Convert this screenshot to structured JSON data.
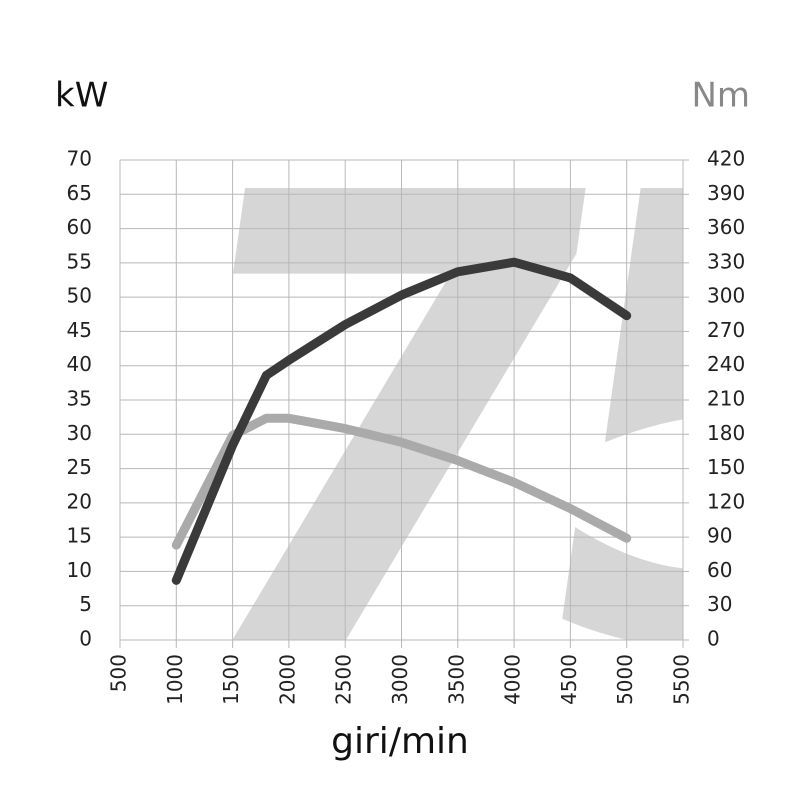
{
  "chart_data": {
    "type": "line",
    "watermark": "75",
    "y_label": "kW",
    "y2_label": "Nm",
    "x_label": "giri/min",
    "x": [
      1000,
      1500,
      1800,
      2000,
      2500,
      3000,
      3500,
      4000,
      4500,
      5000
    ],
    "series": [
      {
        "color": "#3a3a3a",
        "axis": "y2",
        "values": [
          83,
          179,
          194,
          194,
          185,
          173,
          157,
          138,
          115,
          89
        ]
      },
      {
        "color": "#3a3a3a",
        "axis": "y",
        "values": [
          8.7,
          28.4,
          38.6,
          40.8,
          46,
          50.3,
          53.7,
          55.1,
          52.8,
          47.3
        ]
      }
    ],
    "colors": [
      "#aaaaaa",
      "#3a3a3a"
    ],
    "xlim": [
      500,
      5500
    ],
    "xticks": [
      500,
      1000,
      1500,
      2000,
      2500,
      3000,
      3500,
      4000,
      4500,
      5000,
      5500
    ],
    "ylim": [
      0,
      70
    ],
    "yticks": [
      0,
      5,
      10,
      15,
      20,
      25,
      30,
      35,
      40,
      45,
      50,
      55,
      60,
      65,
      70
    ],
    "y2lim": [
      0,
      420
    ],
    "y2ticks": [
      0,
      30,
      60,
      90,
      120,
      150,
      180,
      210,
      240,
      270,
      300,
      330,
      360,
      390,
      420
    ],
    "grid": true
  }
}
